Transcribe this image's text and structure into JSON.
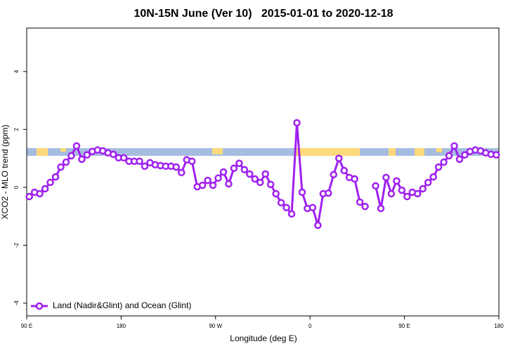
{
  "chart_data": {
    "type": "line",
    "title": "10N-15N June (Ver 10)   2015-01-01 to 2020-12-18",
    "x_label": "Longitude (deg E)",
    "y_label": "XCO2 - MLO trend (ppm)",
    "xlim": [
      90,
      540
    ],
    "ylim": [
      -4.44,
      5.5
    ],
    "xticks": [
      {
        "value": 90,
        "label": "90 E"
      },
      180,
      {
        "value": 270,
        "label": "90 W"
      },
      {
        "value": 360,
        "label": "0"
      },
      {
        "value": 450,
        "label": "90 E"
      },
      {
        "value": 540,
        "label": "180"
      }
    ],
    "yticks": [
      -4,
      -2,
      0,
      2,
      4
    ],
    "legend": "bottom-left",
    "x": [
      92.5,
      97.5,
      102.5,
      107.5,
      112.5,
      117.5,
      122.5,
      127.5,
      132.5,
      137.5,
      142.5,
      147.5,
      152.5,
      157.5,
      162.5,
      167.5,
      172.5,
      177.5,
      182.5,
      187.5,
      192.5,
      197.5,
      202.5,
      207.5,
      212.5,
      217.5,
      222.5,
      227.5,
      232.5,
      237.5,
      242.5,
      247.5,
      252.5,
      257.5,
      262.5,
      267.5,
      272.5,
      277.5,
      282.5,
      287.5,
      292.5,
      297.5,
      302.5,
      307.5,
      312.5,
      317.5,
      322.5,
      327.5,
      332.5,
      337.5,
      342.5,
      347.5,
      352.5,
      357.5,
      362.5,
      367.5,
      372.5,
      377.5,
      382.5,
      387.5,
      392.5,
      397.5,
      402.5,
      407.5,
      412.5,
      417.5,
      422.5,
      427.5,
      432.5,
      437.5,
      442.5,
      447.5,
      452.5,
      457.5,
      462.5,
      467.5,
      472.5,
      477.5,
      482.5,
      487.5,
      492.5,
      497.5,
      502.5,
      507.5,
      512.5,
      517.5,
      522.5,
      527.5,
      532.5,
      537.5
    ],
    "series": [
      {
        "name": "Land (Nadir&Glint) and Ocean (Glint)",
        "color": "#a020f0",
        "values": [
          -0.32,
          -0.17,
          -0.22,
          -0.05,
          0.17,
          0.36,
          0.7,
          0.87,
          1.09,
          1.43,
          0.97,
          1.12,
          1.24,
          1.29,
          1.26,
          1.19,
          1.14,
          1.02,
          1.02,
          0.9,
          0.9,
          0.9,
          0.73,
          0.85,
          0.78,
          0.75,
          0.73,
          0.73,
          0.7,
          0.51,
          0.95,
          0.9,
          0.02,
          0.07,
          0.24,
          0.07,
          0.32,
          0.53,
          0.12,
          0.66,
          0.83,
          0.61,
          0.46,
          0.29,
          0.17,
          0.46,
          0.1,
          -0.22,
          -0.53,
          -0.7,
          -0.92,
          2.23,
          -0.17,
          -0.73,
          -0.7,
          -1.31,
          -0.22,
          -0.2,
          0.44,
          1.0,
          0.58,
          0.34,
          0.29,
          -0.51,
          -0.66,
          null,
          0.05,
          -0.73,
          0.34,
          -0.22,
          0.22,
          -0.1,
          -0.32,
          -0.17,
          -0.22,
          -0.05,
          0.17,
          0.36,
          0.7,
          0.87,
          1.09,
          1.43,
          0.97,
          1.12,
          1.24,
          1.29,
          1.26,
          1.19,
          1.14,
          1.12
        ]
      }
    ]
  }
}
